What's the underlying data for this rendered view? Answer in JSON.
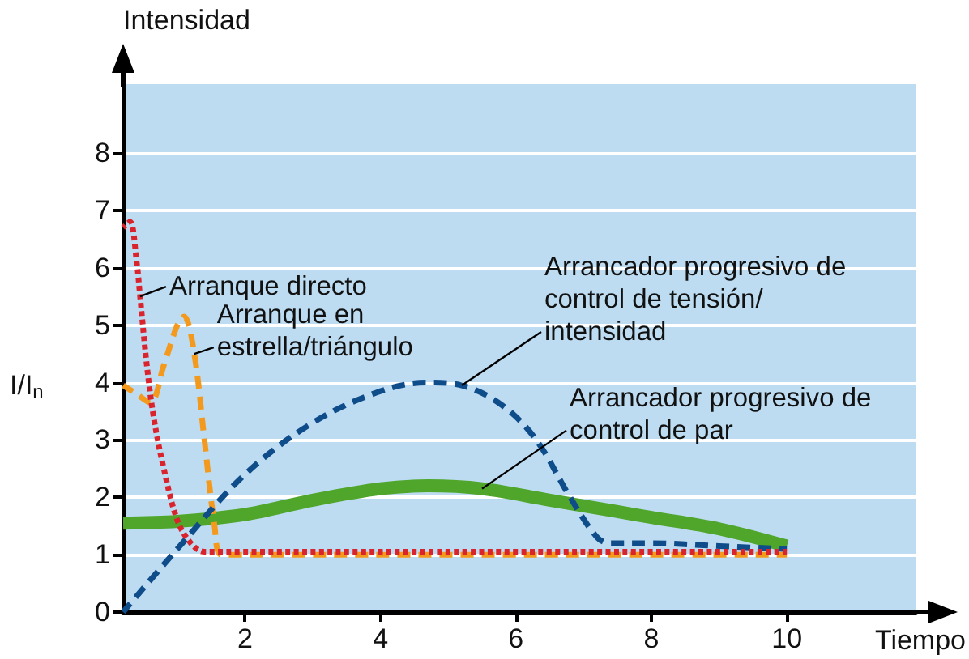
{
  "chart_data": {
    "type": "line",
    "xlabel": "Tiempo",
    "ylabel": "Intensidad",
    "annotations": [
      "I/I$_{n}$"
    ],
    "xlim": [
      0.2,
      11.9
    ],
    "xticks": [
      2,
      4,
      6,
      8,
      10
    ],
    "ylim": [
      0,
      9.2
    ],
    "yticks": [
      0,
      1,
      2,
      3,
      4,
      5,
      6,
      7,
      8
    ],
    "grid": "y",
    "legend": false,
    "marker": "none",
    "series": [
      {
        "name": "Arranque directo",
        "color": "#d9232d",
        "line_style": "dotted",
        "x": [
          0.2,
          0.3,
          0.4,
          0.45,
          0.55,
          0.65,
          0.8,
          1.0,
          1.2,
          1.4,
          2,
          10
        ],
        "values": [
          6.7,
          6.8,
          6.1,
          5.5,
          4.3,
          3.4,
          2.5,
          1.6,
          1.2,
          1.05,
          1.05,
          1.05
        ]
      },
      {
        "name": "Arranque en estrella/triángulo",
        "color": "#f39a1e",
        "line_style": "dashed",
        "x": [
          0.2,
          0.4,
          0.6,
          0.8,
          1.0,
          1.1,
          1.25,
          1.4,
          1.55,
          1.65,
          2,
          10
        ],
        "values": [
          3.95,
          3.8,
          3.65,
          4.3,
          5.0,
          5.15,
          4.5,
          3.0,
          1.5,
          1.0,
          1.0,
          1.0
        ]
      },
      {
        "name": "Arrancador progresivo de control de tensión/ intensidad",
        "color": "#0f4c8a",
        "line_style": "dashed",
        "x": [
          0.2,
          1,
          2,
          3,
          4,
          4.7,
          5.2,
          5.8,
          6.3,
          6.8,
          7.2,
          7.4,
          8,
          9,
          10
        ],
        "values": [
          0,
          1.1,
          2.4,
          3.3,
          3.85,
          4.0,
          3.95,
          3.6,
          3.0,
          2.0,
          1.3,
          1.2,
          1.2,
          1.15,
          1.1
        ]
      },
      {
        "name": "Arrancador progresivo de control de par",
        "color": "#4fa62a",
        "line_style": "solid",
        "x": [
          0.2,
          1,
          2,
          3,
          4,
          4.7,
          5.5,
          6.5,
          7.5,
          8,
          9,
          10
        ],
        "values": [
          1.55,
          1.58,
          1.7,
          1.95,
          2.15,
          2.2,
          2.15,
          1.95,
          1.75,
          1.65,
          1.45,
          1.15
        ]
      }
    ]
  }
}
